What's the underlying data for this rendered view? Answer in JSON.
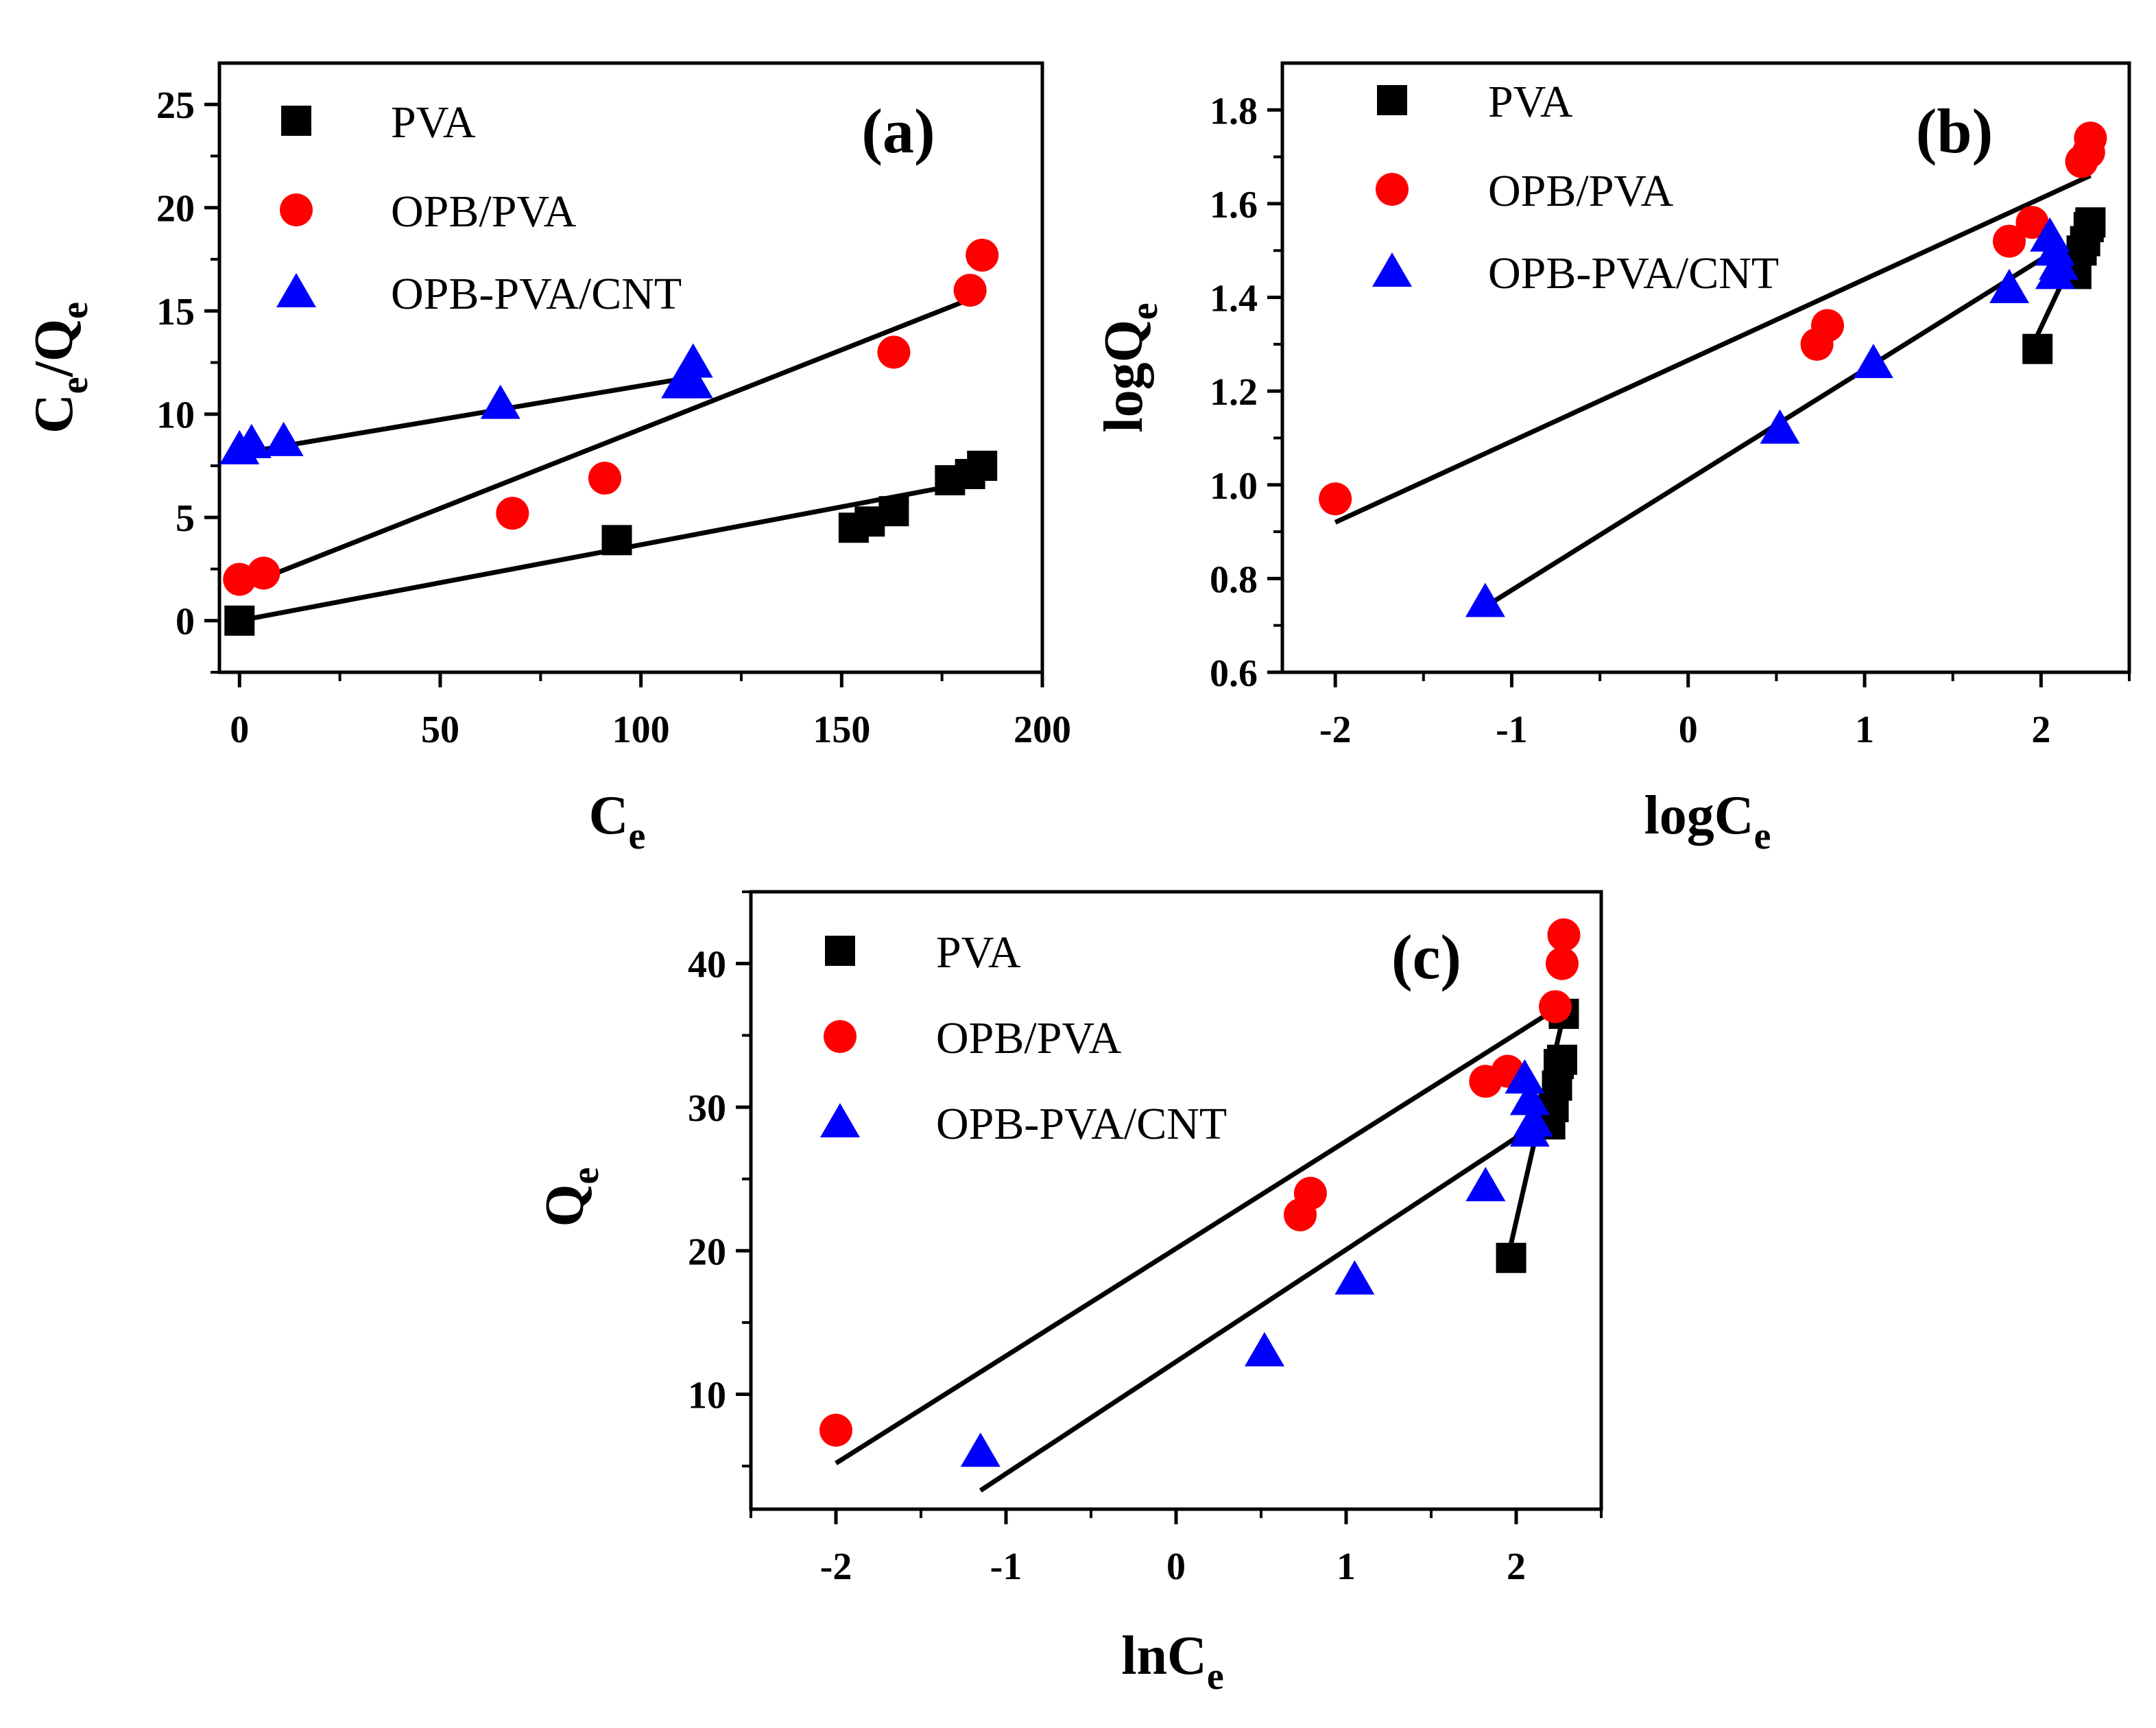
{
  "colors": {
    "pva": "#000000",
    "opb_pva": "#ff0000",
    "opb_pva_cnt": "#0000ff",
    "line": "#000000"
  },
  "chart_data": [
    {
      "panel": "(a)",
      "type": "scatter",
      "xlabel": {
        "main": "C",
        "sub": "e"
      },
      "ylabel": {
        "parts": [
          "C",
          "e",
          "/Q",
          "e"
        ]
      },
      "xlim": [
        -5,
        200
      ],
      "ylim": [
        -2.5,
        27
      ],
      "xticks": [
        0,
        50,
        100,
        150,
        200
      ],
      "xtick_labels": [
        "0",
        "50",
        "100",
        "150",
        "200"
      ],
      "yticks": [
        0,
        5,
        10,
        15,
        20,
        25
      ],
      "ytick_labels": [
        "0",
        "5",
        "10",
        "15",
        "20",
        "25"
      ],
      "legend_position": "top-left",
      "series": [
        {
          "name": "PVA",
          "marker": "square",
          "color": "#000000",
          "points": [
            [
              0,
              0
            ],
            [
              94,
              3.9
            ],
            [
              153,
              4.5
            ],
            [
              157,
              4.8
            ],
            [
              163,
              5.3
            ],
            [
              177,
              6.8
            ],
            [
              182,
              7.1
            ],
            [
              185,
              7.5
            ]
          ],
          "fit": [
            [
              0,
              0
            ],
            [
              185,
              6.8
            ]
          ]
        },
        {
          "name": "OPB/PVA",
          "marker": "circle",
          "color": "#ff0000",
          "points": [
            [
              0,
              2
            ],
            [
              6,
              2.3
            ],
            [
              68,
              5.2
            ],
            [
              91,
              6.9
            ],
            [
              163,
              13
            ],
            [
              182,
              16
            ],
            [
              185,
              17.7
            ]
          ],
          "fit": [
            [
              0,
              1.6
            ],
            [
              185,
              15.8
            ]
          ]
        },
        {
          "name": "OPB-PVA/CNT",
          "marker": "triangle",
          "color": "#0000ff",
          "points": [
            [
              0,
              8.3
            ],
            [
              3,
              8.6
            ],
            [
              11,
              8.7
            ],
            [
              65,
              10.5
            ],
            [
              110,
              11.5
            ],
            [
              113,
              12.5
            ],
            [
              113,
              11.5
            ]
          ],
          "fit": [
            [
              0,
              8.1
            ],
            [
              113,
              11.8
            ]
          ]
        }
      ]
    },
    {
      "panel": "(b)",
      "type": "scatter",
      "xlabel": {
        "main": "logC",
        "sub": "e"
      },
      "ylabel": {
        "parts": [
          "logQ",
          "e"
        ]
      },
      "xlim": [
        -2.3,
        2.5
      ],
      "ylim": [
        0.6,
        1.9
      ],
      "xticks": [
        -2,
        -1,
        0,
        1,
        2
      ],
      "xtick_labels": [
        "-2",
        "-1",
        "0",
        "1",
        "2"
      ],
      "yticks": [
        0.6,
        0.8,
        1.0,
        1.2,
        1.4,
        1.6,
        1.8
      ],
      "ytick_labels": [
        "0.6",
        "0.8",
        "1.0",
        "1.2",
        "1.4",
        "1.6",
        "1.8"
      ],
      "legend_position": "top-left",
      "series": [
        {
          "name": "PVA",
          "marker": "square",
          "color": "#000000",
          "points": [
            [
              1.98,
              1.29
            ],
            [
              2.2,
              1.45
            ],
            [
              2.23,
              1.5
            ],
            [
              2.25,
              1.52
            ],
            [
              2.27,
              1.55
            ],
            [
              2.28,
              1.56
            ]
          ],
          "fit": [
            [
              1.98,
              1.32
            ],
            [
              2.28,
              1.56
            ]
          ]
        },
        {
          "name": "OPB/PVA",
          "marker": "circle",
          "color": "#ff0000",
          "points": [
            [
              -2,
              0.97
            ],
            [
              0.73,
              1.3
            ],
            [
              0.79,
              1.34
            ],
            [
              1.82,
              1.52
            ],
            [
              1.95,
              1.56
            ],
            [
              2.23,
              1.69
            ],
            [
              2.27,
              1.71
            ],
            [
              2.28,
              1.74
            ]
          ],
          "fit": [
            [
              -2,
              0.92
            ],
            [
              2.28,
              1.66
            ]
          ]
        },
        {
          "name": "OPB-PVA/CNT",
          "marker": "triangle",
          "color": "#0000ff",
          "points": [
            [
              -1.15,
              0.75
            ],
            [
              0.52,
              1.12
            ],
            [
              1.05,
              1.26
            ],
            [
              1.82,
              1.42
            ],
            [
              2.05,
              1.53
            ],
            [
              2.08,
              1.5
            ],
            [
              2.1,
              1.47
            ],
            [
              2.08,
              1.45
            ]
          ],
          "fit": [
            [
              -1.15,
              0.74
            ],
            [
              2.08,
              1.5
            ]
          ]
        }
      ]
    },
    {
      "panel": "(c)",
      "type": "scatter",
      "xlabel": {
        "main": "lnC",
        "sub": "e"
      },
      "ylabel": {
        "parts": [
          "Q",
          "e"
        ]
      },
      "xlim": [
        -2.5,
        2.5
      ],
      "ylim": [
        2,
        45
      ],
      "xticks": [
        -2,
        -1,
        0,
        1,
        2
      ],
      "xtick_labels": [
        "-2",
        "-1",
        "0",
        "1",
        "2"
      ],
      "yticks": [
        10,
        20,
        30,
        40
      ],
      "ytick_labels": [
        "10",
        "20",
        "30",
        "40"
      ],
      "legend_position": "top-left",
      "series": [
        {
          "name": "PVA",
          "marker": "square",
          "color": "#000000",
          "points": [
            [
              1.97,
              19.5
            ],
            [
              2.2,
              28.8
            ],
            [
              2.22,
              30
            ],
            [
              2.24,
              31.5
            ],
            [
              2.25,
              33
            ],
            [
              2.27,
              33.3
            ],
            [
              2.28,
              36.5
            ]
          ],
          "fit": [
            [
              1.97,
              20.5
            ],
            [
              2.28,
              36.5
            ]
          ]
        },
        {
          "name": "OPB/PVA",
          "marker": "circle",
          "color": "#ff0000",
          "points": [
            [
              -2,
              7.5
            ],
            [
              0.73,
              22.5
            ],
            [
              0.79,
              24
            ],
            [
              1.82,
              31.8
            ],
            [
              1.95,
              32.5
            ],
            [
              2.23,
              37
            ],
            [
              2.27,
              40
            ],
            [
              2.28,
              42
            ]
          ],
          "fit": [
            [
              -2,
              5.2
            ],
            [
              2.28,
              37.2
            ]
          ]
        },
        {
          "name": "OPB-PVA/CNT",
          "marker": "triangle",
          "color": "#0000ff",
          "points": [
            [
              -1.15,
              6
            ],
            [
              0.52,
              13
            ],
            [
              1.05,
              18
            ],
            [
              1.82,
              24.5
            ],
            [
              2.05,
              32
            ],
            [
              2.08,
              30.5
            ],
            [
              2.1,
              29
            ],
            [
              2.08,
              28.3
            ]
          ],
          "fit": [
            [
              -1.15,
              3.3
            ],
            [
              2.08,
              28.5
            ]
          ]
        }
      ]
    }
  ]
}
